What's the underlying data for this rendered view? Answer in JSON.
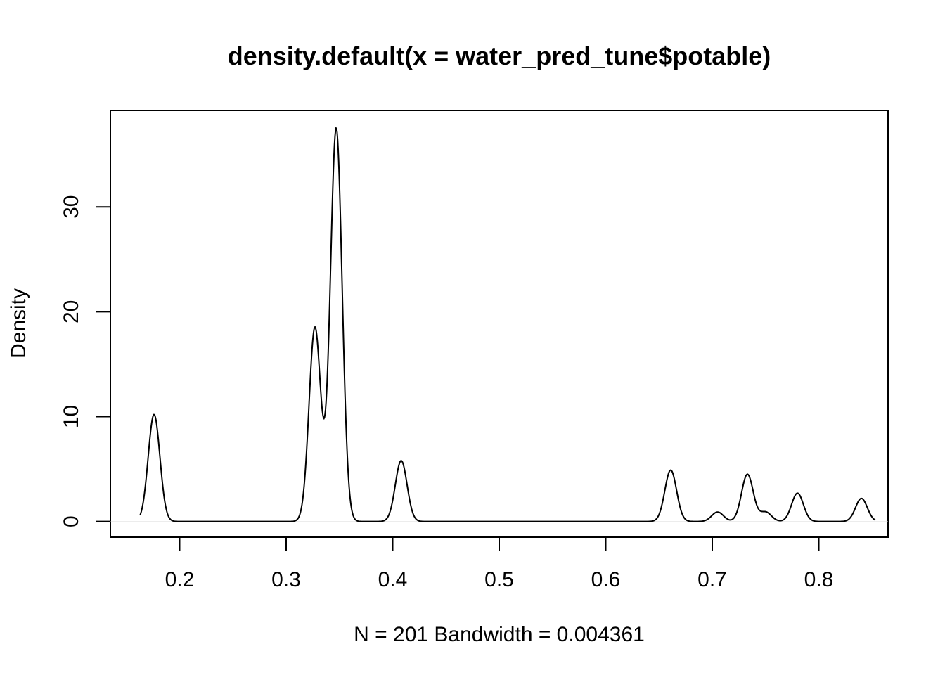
{
  "chart_data": {
    "type": "line",
    "title": "density.default(x = water_pred_tune$potable)",
    "xlabel": "N = 201   Bandwidth = 0.004361",
    "ylabel": "Density",
    "xlim": [
      0.135,
      0.865
    ],
    "ylim": [
      -1.5,
      39.2
    ],
    "x_ticks": [
      0.2,
      0.3,
      0.4,
      0.5,
      0.6,
      0.7,
      0.8
    ],
    "x_tick_labels": [
      "0.2",
      "0.3",
      "0.4",
      "0.5",
      "0.6",
      "0.7",
      "0.8"
    ],
    "y_ticks": [
      0,
      10,
      20,
      30
    ],
    "y_tick_labels": [
      "0",
      "10",
      "20",
      "30"
    ],
    "grid": false,
    "series": [
      {
        "x_range": [
          0.163,
          0.853
        ],
        "peaks": [
          {
            "x": 0.176,
            "y": 10.2
          },
          {
            "x": 0.327,
            "y": 18.5
          },
          {
            "x": 0.347,
            "y": 37.5
          },
          {
            "x": 0.408,
            "y": 5.8
          },
          {
            "x": 0.661,
            "y": 4.9
          },
          {
            "x": 0.705,
            "y": 0.9
          },
          {
            "x": 0.733,
            "y": 4.5
          },
          {
            "x": 0.75,
            "y": 0.9
          },
          {
            "x": 0.78,
            "y": 2.7
          },
          {
            "x": 0.84,
            "y": 2.2
          }
        ]
      }
    ]
  }
}
